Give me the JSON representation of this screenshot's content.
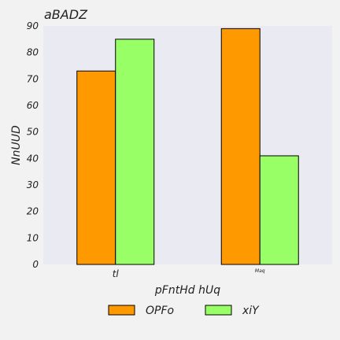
{
  "chart_data": {
    "type": "bar",
    "title": "aBADZ",
    "xlabel": "pFntHd hUq",
    "ylabel": "NnUUD",
    "categories": [
      "tl",
      "Maq"
    ],
    "series": [
      {
        "name": "OPFo",
        "values": [
          73,
          89
        ],
        "color": "#ff9900"
      },
      {
        "name": "xiY",
        "values": [
          85,
          41
        ],
        "color": "#99ff66"
      }
    ],
    "ylim": [
      0,
      90
    ],
    "yticks": [
      0,
      10,
      20,
      30,
      40,
      50,
      60,
      70,
      80,
      90
    ],
    "grid": false,
    "legend": "bottom-center",
    "plot_background": "#eaeaf2",
    "background": "#f2f2f2",
    "bar_edge_color": "#000000"
  }
}
